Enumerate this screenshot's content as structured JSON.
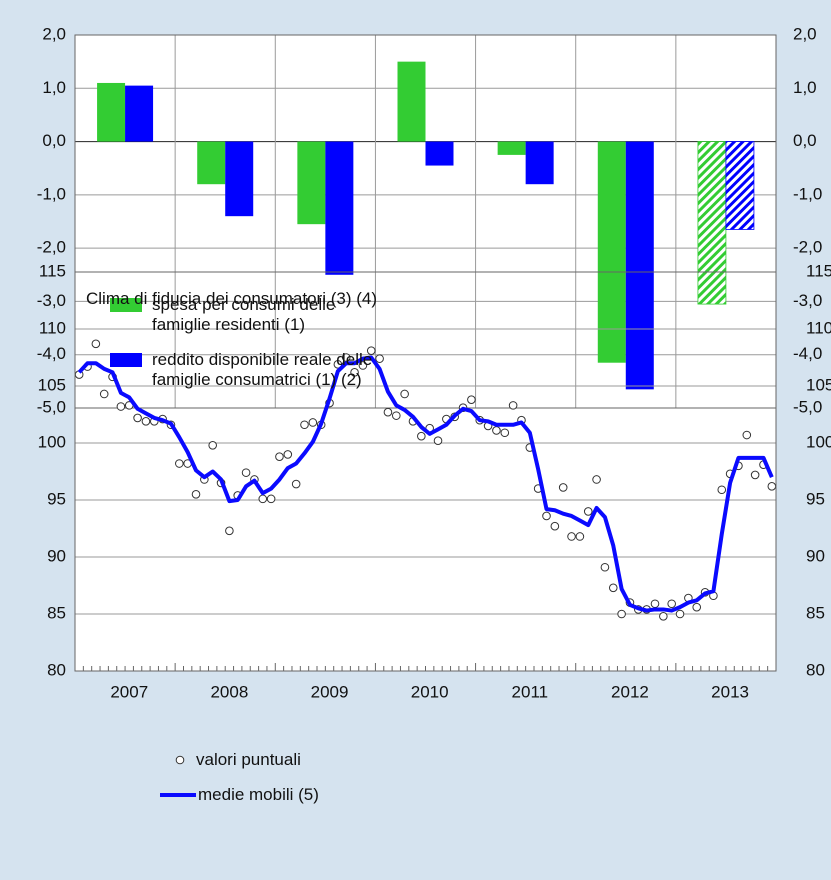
{
  "chart_data": [
    {
      "type": "bar",
      "categories": [
        null,
        null,
        null,
        null,
        null,
        null,
        null
      ],
      "series": [
        {
          "name": "spesa per consumi delle\nfamiglie residenti (1)",
          "color": "#33cc33",
          "values": [
            1.1,
            -0.8,
            -1.55,
            1.5,
            -0.25,
            -4.15,
            -3.05
          ]
        },
        {
          "name": "reddito disponibile reale delle\nfamiglie consumatrici (1) (2)",
          "color": "#0000ff",
          "values": [
            1.05,
            -1.4,
            -2.5,
            -0.45,
            -0.8,
            -4.65,
            -1.65
          ]
        }
      ],
      "hatched": [
        false,
        false,
        false,
        false,
        false,
        false,
        true
      ],
      "ylim": [
        -5,
        2
      ],
      "yticks": [
        {
          "value": 2,
          "label": "2,0"
        },
        {
          "value": 1,
          "label": "1,0"
        },
        {
          "value": 0,
          "label": "0,0"
        },
        {
          "value": -1,
          "label": "-1,0"
        },
        {
          "value": -2,
          "label": "-2,0"
        },
        {
          "value": -3,
          "label": "-3,0"
        },
        {
          "value": -4,
          "label": "-4,0"
        },
        {
          "value": -5,
          "label": "-5,0"
        }
      ],
      "grid": true
    },
    {
      "type": "line",
      "title": "Clima di fiducia dei consumatori (3) (4)",
      "categories": [
        null,
        null,
        null,
        null,
        null,
        null,
        "2007",
        null,
        null,
        null,
        null,
        null,
        null,
        null,
        null,
        null,
        null,
        null,
        "2008",
        null,
        null,
        null,
        null,
        null,
        null,
        null,
        null,
        null,
        null,
        null,
        "2009",
        null,
        null,
        null,
        null,
        null,
        null,
        null,
        null,
        null,
        null,
        null,
        "2010",
        null,
        null,
        null,
        null,
        null,
        null,
        null,
        null,
        null,
        null,
        null,
        "2011",
        null,
        null,
        null,
        null,
        null,
        null,
        null,
        null,
        null,
        null,
        null,
        "2012",
        null,
        null,
        null,
        null,
        null,
        null,
        null,
        null,
        null,
        null,
        null,
        "2013",
        null,
        null,
        null,
        null,
        null
      ],
      "series": [
        {
          "name": "valori puntuali",
          "style": "points",
          "color": "#333333",
          "values": [
            106.0,
            106.7,
            108.7,
            104.3,
            105.8,
            103.2,
            103.3,
            102.2,
            101.9,
            101.9,
            102.1,
            101.6,
            98.2,
            98.2,
            95.5,
            96.8,
            99.8,
            96.5,
            92.3,
            95.4,
            97.4,
            96.8,
            95.1,
            95.1,
            98.8,
            99.0,
            96.4,
            101.6,
            101.8,
            101.6,
            103.5,
            106.9,
            107.5,
            106.2,
            106.8,
            108.1,
            107.4,
            102.7,
            102.4,
            104.3,
            101.9,
            100.6,
            101.3,
            100.2,
            102.1,
            102.3,
            103.1,
            103.8,
            102.0,
            101.5,
            101.1,
            100.9,
            103.3,
            102.0,
            99.6,
            96.0,
            93.6,
            92.7,
            96.1,
            91.8,
            91.8,
            94.0,
            96.8,
            89.1,
            87.3,
            85.0,
            86.0,
            85.4,
            85.4,
            85.9,
            84.8,
            85.9,
            85.0,
            86.4,
            85.6,
            86.9,
            86.6,
            95.9,
            97.3,
            98.0,
            100.7,
            97.2,
            98.1,
            96.2
          ]
        },
        {
          "name": "medie mobili (5)",
          "style": "line",
          "color": "#0a0aff",
          "values": [
            106.2,
            107.0,
            107.0,
            106.5,
            106.2,
            104.4,
            104.0,
            103.0,
            102.6,
            102.2,
            102.0,
            101.7,
            100.5,
            99.2,
            97.6,
            97.0,
            97.5,
            96.8,
            94.9,
            95.0,
            96.2,
            96.7,
            95.6,
            96.0,
            96.8,
            97.8,
            98.2,
            99.1,
            100.1,
            101.7,
            103.9,
            106.3,
            107.0,
            107.0,
            107.4,
            107.5,
            106.5,
            104.5,
            103.3,
            102.9,
            102.3,
            101.4,
            100.8,
            101.2,
            101.6,
            102.4,
            103.0,
            102.8,
            102.0,
            101.9,
            101.6,
            101.6,
            101.6,
            101.8,
            100.9,
            97.7,
            94.2,
            94.1,
            93.8,
            93.6,
            93.2,
            92.8,
            94.3,
            93.5,
            91.0,
            87.2,
            85.8,
            85.5,
            85.3,
            85.4,
            85.4,
            85.3,
            85.6,
            86.0,
            86.2,
            86.8,
            87.0,
            92.0,
            96.5,
            98.7,
            98.7,
            98.7,
            98.7,
            97.0
          ]
        }
      ],
      "ylim": [
        80,
        115
      ],
      "yticks": [
        80,
        85,
        90,
        95,
        100,
        105,
        110,
        115
      ],
      "grid": true
    }
  ]
}
